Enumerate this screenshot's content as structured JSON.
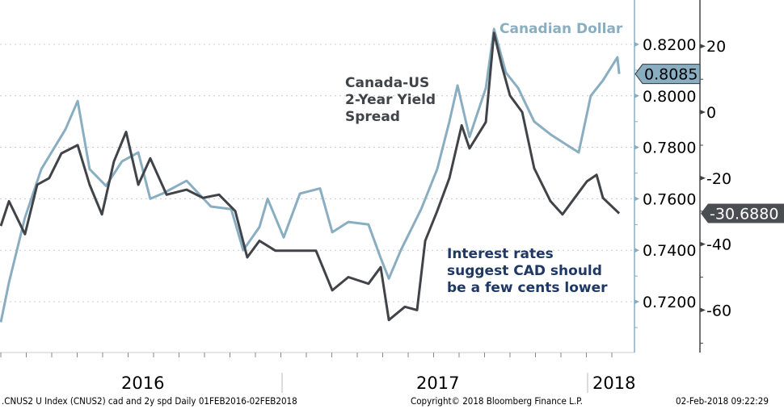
{
  "chart_data": {
    "type": "line",
    "x_unit": "months since 01-Feb-2016",
    "xlim": [
      0,
      24.9
    ],
    "x_tick_labels": [
      "2016",
      "2017",
      "2018"
    ],
    "series": [
      {
        "name": "Canadian Dollar",
        "axis": "left",
        "color": "#8aaec1",
        "x": [
          0,
          0.32,
          0.95,
          1.59,
          2.54,
          3.02,
          3.49,
          4.13,
          4.76,
          5.4,
          5.87,
          6.35,
          7.3,
          8.25,
          9.05,
          9.52,
          10.16,
          10.48,
          11.11,
          11.75,
          12.54,
          13.02,
          13.65,
          14.44,
          14.92,
          15.24,
          15.71,
          16.51,
          17.14,
          17.62,
          17.94,
          18.41,
          19.05,
          19.37,
          19.84,
          20.32,
          20.95,
          21.59,
          22.22,
          22.7,
          23.17,
          23.65,
          24.22,
          24.29
        ],
        "y": [
          0.712,
          0.7275,
          0.7527,
          0.7715,
          0.787,
          0.798,
          0.7715,
          0.765,
          0.7745,
          0.778,
          0.76,
          0.762,
          0.767,
          0.757,
          0.756,
          0.74,
          0.749,
          0.76,
          0.745,
          0.762,
          0.764,
          0.747,
          0.751,
          0.75,
          0.737,
          0.729,
          0.74,
          0.756,
          0.7715,
          0.79,
          0.804,
          0.784,
          0.803,
          0.826,
          0.809,
          0.803,
          0.79,
          0.785,
          0.781,
          0.778,
          0.8,
          0.806,
          0.815,
          0.8085
        ]
      },
      {
        "name": "Canada-US 2-Year Yield Spread",
        "axis": "right",
        "color": "#404449",
        "x": [
          0,
          0.32,
          0.95,
          1.43,
          1.9,
          2.38,
          3.02,
          3.49,
          3.97,
          4.44,
          4.92,
          5.4,
          5.87,
          6.51,
          7.3,
          7.94,
          8.57,
          9.21,
          9.68,
          10.16,
          10.79,
          11.43,
          12.38,
          13.02,
          13.65,
          14.44,
          14.92,
          15.24,
          15.87,
          16.35,
          16.67,
          17.14,
          17.62,
          18.1,
          18.41,
          19.05,
          19.37,
          19.68,
          20,
          20.48,
          20.95,
          21.59,
          22.06,
          22.54,
          23.02,
          23.4,
          23.65,
          24.29
        ],
        "y": [
          -34.5,
          -27,
          -37,
          -22,
          -20,
          -12.5,
          -10,
          -22,
          -31,
          -15,
          -6,
          -22,
          -14,
          -25,
          -23.5,
          -26,
          -25,
          -30,
          -44,
          -39,
          -42,
          -42,
          -42,
          -54,
          -50,
          -52,
          -47,
          -63,
          -59,
          -60,
          -39,
          -30,
          -20,
          -4,
          -11,
          -3,
          24,
          14,
          5,
          0,
          -17,
          -27,
          -31,
          -26,
          -21,
          -19,
          -26,
          -30.688
        ]
      }
    ],
    "left_axis": {
      "ticks": [
        "0.7200",
        "0.7400",
        "0.7600",
        "0.7800",
        "0.8000",
        "0.8200"
      ],
      "ylim": [
        0.7045,
        0.837
      ]
    },
    "right_axis": {
      "ticks": [
        "-60",
        "-40",
        "-20",
        "0",
        "20"
      ],
      "ylim": [
        -67,
        40
      ]
    },
    "last_values": {
      "cad": "0.8085",
      "spread": "-30.6880"
    },
    "annotations": {
      "cad_label": "Canadian Dollar",
      "spread_label": [
        "Canada-US",
        "2-Year Yield",
        "Spread"
      ],
      "note": [
        "Interest rates",
        "suggest CAD should",
        "be a few cents lower"
      ]
    }
  },
  "footer": {
    "left": ".CNUS2 U Index (CNUS2) cad and 2y spd  Daily 01FEB2016-02FEB2018",
    "center": "Copyright© 2018 Bloomberg Finance L.P.",
    "right": "02-Feb-2018 09:22:29"
  }
}
